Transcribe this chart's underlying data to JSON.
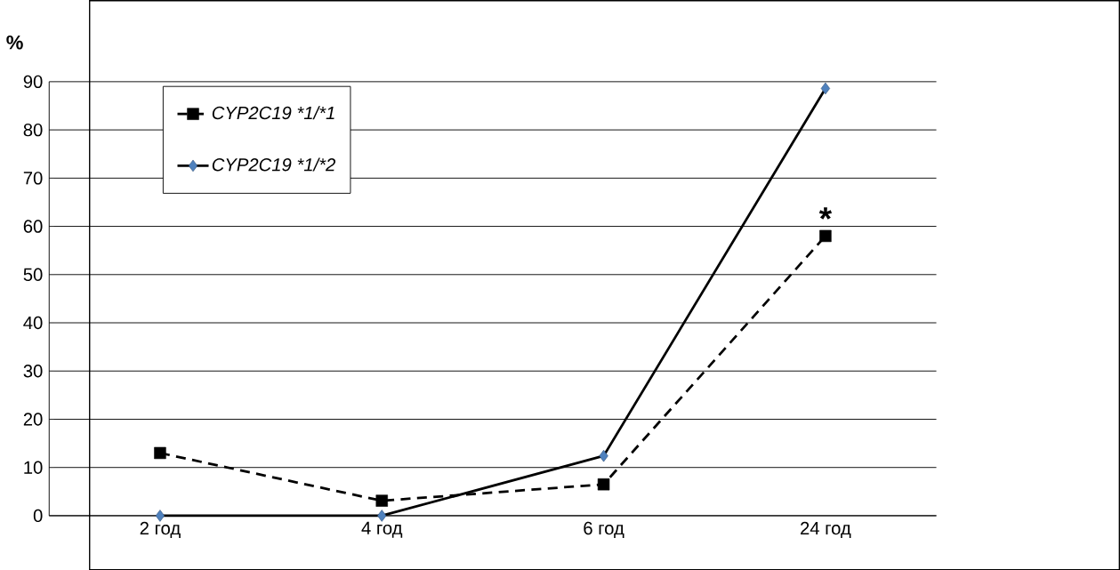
{
  "chart_data": {
    "type": "line",
    "ylabel": "%",
    "categories": [
      "2 год",
      "4 год",
      "6 год",
      "24 год"
    ],
    "series": [
      {
        "name": "CYP2C19 *1/*1",
        "color": "#000000",
        "values": [
          13,
          3.1,
          6.5,
          58
        ],
        "marker": "square",
        "line_style": "dashed"
      },
      {
        "name": "CYP2C19 *1/*2",
        "color": "#4f81bd",
        "values": [
          0,
          0,
          12.4,
          88.6
        ],
        "marker": "diamond",
        "line_style": "solid"
      }
    ],
    "annotations": [
      "*"
    ],
    "ylim": [
      0,
      90
    ],
    "yticks": [
      0,
      10,
      20,
      30,
      40,
      50,
      60,
      70,
      80,
      90
    ],
    "grid": "y",
    "legend": "top left"
  }
}
